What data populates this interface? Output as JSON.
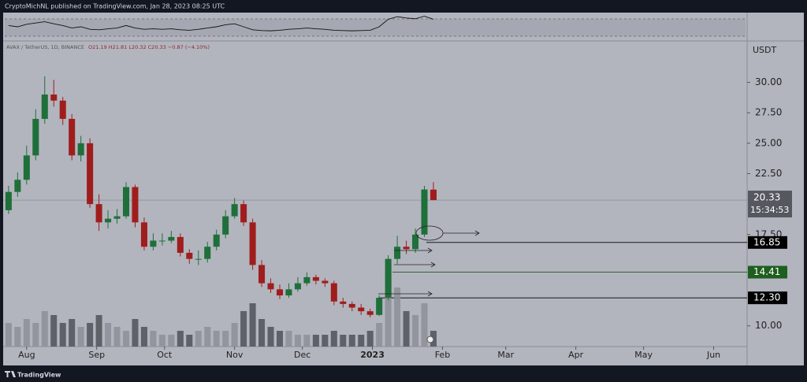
{
  "header": "CryptoMichNL published on TradingView.com, Jan 28, 2023 08:25 UTC",
  "footer": "TradingView",
  "chart_data": {
    "type": "candlestick",
    "symbol": "AVAX / TetherUS, 1D, BINANCE",
    "ohlc_legend": "O21.19 H21.81 L20.32 C20.33 −0.87 (−4.10%)",
    "y_unit": "USDT",
    "up_color": "#1f6f3a",
    "down_color": "#a01d1d",
    "x": [
      -8,
      -4,
      0,
      4,
      8,
      12,
      16,
      20,
      24,
      28,
      32,
      36,
      40,
      44,
      48,
      52,
      56,
      60,
      64,
      68,
      72,
      76,
      80,
      84,
      88,
      92,
      96,
      100,
      104,
      108,
      112,
      116,
      120,
      124,
      128,
      132,
      136,
      140,
      144,
      148,
      152,
      156,
      160,
      164,
      168,
      172,
      176,
      180
    ],
    "open": [
      19.5,
      21,
      22,
      24,
      27,
      29,
      28.5,
      27,
      24,
      25,
      20,
      18.5,
      18.8,
      19,
      21.4,
      18.5,
      16.5,
      17,
      17,
      17.3,
      16,
      15.5,
      15.5,
      16.5,
      17.5,
      19,
      20,
      18.5,
      15,
      13.5,
      13,
      12.5,
      13,
      13.5,
      14,
      13.7,
      13.5,
      12,
      11.8,
      11.5,
      11.2,
      10.9,
      12.3,
      15.5,
      16.5,
      16.3,
      17.5,
      21.19
    ],
    "high": [
      21.5,
      22.6,
      24.8,
      27.8,
      30.5,
      30.2,
      28.8,
      27.4,
      25.6,
      25.4,
      20.8,
      19.5,
      19.6,
      21.8,
      21.6,
      18.9,
      17.6,
      17.6,
      17.8,
      17.6,
      16.3,
      16.2,
      16.9,
      17.9,
      19.5,
      20.5,
      20.3,
      18.8,
      15.4,
      13.9,
      13.4,
      13.5,
      14,
      14.4,
      14.2,
      13.9,
      13.7,
      12.3,
      12,
      11.8,
      11.4,
      12.5,
      15.8,
      17.4,
      17,
      18,
      21.5,
      21.81
    ],
    "low": [
      19.2,
      20.6,
      21.6,
      23.6,
      26.6,
      28,
      26.5,
      23.6,
      23.5,
      19.7,
      17.8,
      18,
      18.4,
      18.8,
      18.1,
      16.2,
      16.2,
      16.6,
      16.8,
      15.7,
      15.1,
      15,
      15.2,
      16.2,
      17.2,
      18.8,
      18.2,
      14.6,
      13.2,
      12.7,
      12.2,
      12.3,
      12.8,
      13.3,
      13.4,
      13.2,
      11.7,
      11.5,
      11.2,
      10.9,
      10.7,
      10.8,
      12.1,
      15.1,
      15.9,
      16,
      17.3,
      20.32
    ],
    "close": [
      21,
      22,
      24,
      27,
      29,
      28.5,
      27,
      24,
      25,
      20,
      18.5,
      18.8,
      19,
      21.4,
      18.5,
      16.5,
      17,
      17,
      17.3,
      16,
      15.5,
      15.5,
      16.5,
      17.5,
      19,
      20,
      18.5,
      15,
      13.5,
      13,
      12.5,
      13,
      13.5,
      14,
      13.7,
      13.5,
      12,
      11.8,
      11.5,
      11.2,
      10.9,
      12.3,
      15.5,
      16.5,
      16.3,
      17.5,
      21.2,
      20.33
    ],
    "volume": [
      30,
      25,
      35,
      30,
      45,
      40,
      30,
      35,
      25,
      30,
      40,
      30,
      25,
      20,
      35,
      25,
      20,
      15,
      15,
      20,
      15,
      20,
      25,
      20,
      20,
      30,
      45,
      55,
      35,
      25,
      20,
      20,
      15,
      15,
      15,
      15,
      20,
      15,
      15,
      15,
      20,
      30,
      100,
      75,
      45,
      40,
      55,
      20
    ],
    "vlim": [
      0,
      100
    ],
    "oscillator": [
      55,
      50,
      60,
      65,
      70,
      62,
      55,
      45,
      50,
      40,
      38,
      42,
      45,
      55,
      45,
      40,
      42,
      40,
      42,
      38,
      36,
      40,
      45,
      50,
      58,
      62,
      50,
      38,
      35,
      34,
      36,
      40,
      42,
      45,
      42,
      40,
      36,
      35,
      34,
      35,
      36,
      50,
      80,
      90,
      85,
      82,
      92,
      80
    ],
    "osc_lim": [
      0,
      100
    ],
    "xlim": [
      -10.4,
      318.8
    ],
    "xticks": [
      {
        "value": 0,
        "label": "Aug"
      },
      {
        "value": 31,
        "label": "Sep"
      },
      {
        "value": 61,
        "label": "Oct"
      },
      {
        "value": 92,
        "label": "Nov"
      },
      {
        "value": 122,
        "label": "Dec"
      },
      {
        "value": 153,
        "label": "2023"
      },
      {
        "value": 184,
        "label": "Feb"
      },
      {
        "value": 212,
        "label": "Mar"
      },
      {
        "value": 243,
        "label": "Apr"
      },
      {
        "value": 273,
        "label": "May"
      },
      {
        "value": 304,
        "label": "Jun"
      }
    ],
    "ylim": [
      8.3,
      33.4
    ],
    "yticks": [
      {
        "value": 10,
        "label": "10.00"
      },
      {
        "value": 17.5,
        "label": "17.50"
      },
      {
        "value": 22.5,
        "label": "22.50"
      },
      {
        "value": 25,
        "label": "25.00"
      },
      {
        "value": 27.5,
        "label": "27.50"
      },
      {
        "value": 30,
        "label": "30.00"
      }
    ],
    "last_price": {
      "value": 20.33,
      "label": "20.33",
      "countdown": "15:34:53"
    },
    "levels": [
      {
        "value": 16.85,
        "label": "16.85",
        "color": "#000000"
      },
      {
        "value": 14.41,
        "label": "14.41",
        "color": "#1e5e1e"
      },
      {
        "value": 12.3,
        "label": "12.30",
        "color": "#000000"
      }
    ]
  }
}
